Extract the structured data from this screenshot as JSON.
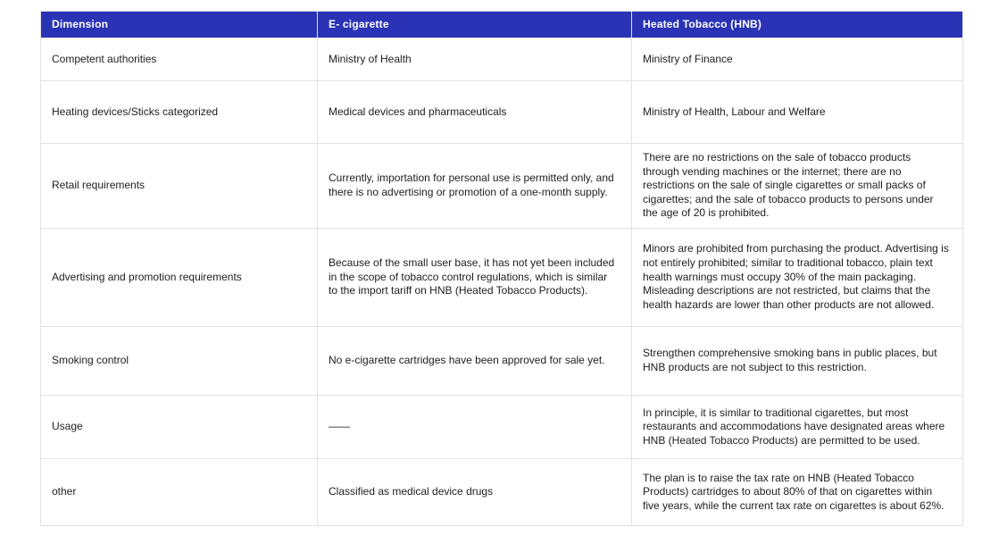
{
  "colors": {
    "header_bg": "#2a33b5",
    "header_text": "#ffffff",
    "border": "#e2e2e2",
    "body_text": "#1e1e1e"
  },
  "table": {
    "headers": [
      {
        "label": "Dimension"
      },
      {
        "label": "E- cigarette"
      },
      {
        "label": "Heated Tobacco (HNB)"
      }
    ],
    "rows": [
      {
        "dimension": "Competent authorities",
        "ecig": "Ministry of Health",
        "hnb": "Ministry of Finance"
      },
      {
        "dimension": "Heating devices/Sticks categorized",
        "ecig": "Medical devices and pharmaceuticals",
        "hnb": "Ministry of Health, Labour and Welfare"
      },
      {
        "dimension": "Retail requirements",
        "ecig": "Currently, importation for personal use is permitted only, and there is no advertising or promotion of a one-month supply.",
        "hnb": "There are no restrictions on the sale of tobacco products through vending machines or the internet; there are no restrictions on the sale of single cigarettes or small packs of cigarettes; and the sale of tobacco products to persons under the age of 20 is prohibited."
      },
      {
        "dimension": "Advertising and promotion requirements",
        "ecig": "Because of the small user base, it has not yet been included in the scope of tobacco control regulations, which is similar to the import tariff on HNB (Heated Tobacco Products).",
        "hnb": "Minors are prohibited from purchasing the product. Advertising is not entirely prohibited; similar to traditional tobacco, plain text health warnings must occupy 30% of the main packaging. Misleading descriptions are not restricted, but claims that the health hazards are lower than other products are not allowed."
      },
      {
        "dimension": "Smoking control",
        "ecig": "No e-cigarette cartridges have been approved for sale yet.",
        "hnb": "Strengthen comprehensive smoking bans in public places, but HNB products are not subject to this restriction."
      },
      {
        "dimension": "Usage",
        "ecig": "——",
        "hnb": "In principle, it is similar to traditional cigarettes, but most restaurants and accommodations have designated areas where HNB (Heated Tobacco Products) are permitted to be used."
      },
      {
        "dimension": "other",
        "ecig": "Classified as medical device drugs",
        "hnb": "The plan is to raise the tax rate on HNB (Heated Tobacco Products) cartridges to about 80% of that on cigarettes within five years, while the current tax rate on cigarettes is about 62%."
      }
    ]
  }
}
